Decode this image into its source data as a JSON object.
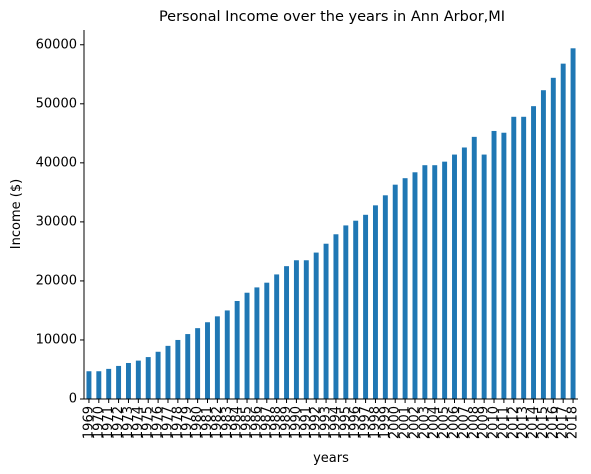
{
  "chart_data": {
    "type": "bar",
    "title": "Personal Income over the years in Ann Arbor,MI",
    "xlabel": "years",
    "ylabel": "Income ($)",
    "ylim": [
      0,
      62500
    ],
    "yticks": [
      0,
      10000,
      20000,
      30000,
      40000,
      50000,
      60000
    ],
    "ytick_labels": [
      "0",
      "10000",
      "20000",
      "30000",
      "40000",
      "50000",
      "60000"
    ],
    "grid": false,
    "bar_color": "#1f77b4",
    "categories": [
      "1969",
      "1970",
      "1971",
      "1972",
      "1973",
      "1974",
      "1975",
      "1976",
      "1977",
      "1978",
      "1979",
      "1980",
      "1981",
      "1982",
      "1983",
      "1984",
      "1985",
      "1986",
      "1987",
      "1988",
      "1989",
      "1990",
      "1991",
      "1992",
      "1993",
      "1994",
      "1995",
      "1996",
      "1997",
      "1998",
      "1999",
      "2000",
      "2001",
      "2002",
      "2003",
      "2004",
      "2005",
      "2006",
      "2007",
      "2008",
      "2009",
      "2010",
      "2011",
      "2012",
      "2013",
      "2014",
      "2015",
      "2016",
      "2017",
      "2018"
    ],
    "values": [
      4700,
      4700,
      5100,
      5600,
      6100,
      6500,
      7100,
      8000,
      9000,
      10000,
      11000,
      12000,
      13000,
      14000,
      15000,
      16600,
      18000,
      18900,
      19700,
      21100,
      22500,
      23500,
      23500,
      24800,
      26300,
      27900,
      29400,
      30200,
      31200,
      32800,
      34500,
      36300,
      37400,
      38400,
      39600,
      39600,
      40200,
      41400,
      42600,
      44400,
      41400,
      45400,
      45100,
      47800,
      47800,
      49600,
      52300,
      54400,
      56800,
      59400
    ]
  }
}
